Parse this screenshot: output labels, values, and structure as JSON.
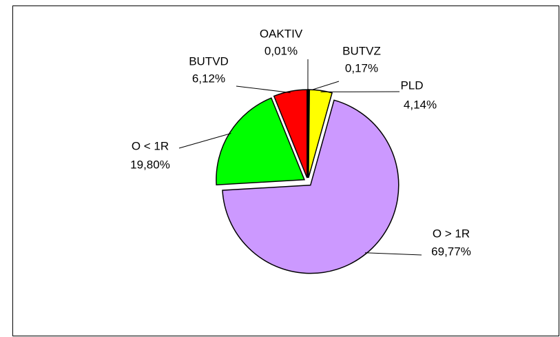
{
  "chart_data": {
    "type": "pie",
    "categories": [
      "BUTVZ",
      "PLD",
      "O > 1R",
      "O < 1R",
      "BUTVD",
      "OAKTIV"
    ],
    "values": [
      0.17,
      4.14,
      69.77,
      19.8,
      6.12,
      0.01
    ],
    "value_labels": [
      "0,17%",
      "4,14%",
      "69,77%",
      "19,80%",
      "6,12%",
      "0,01%"
    ],
    "colors": [
      "#ffffff",
      "#ffff00",
      "#cc99ff",
      "#00ff00",
      "#ff0000",
      "#000000"
    ]
  }
}
